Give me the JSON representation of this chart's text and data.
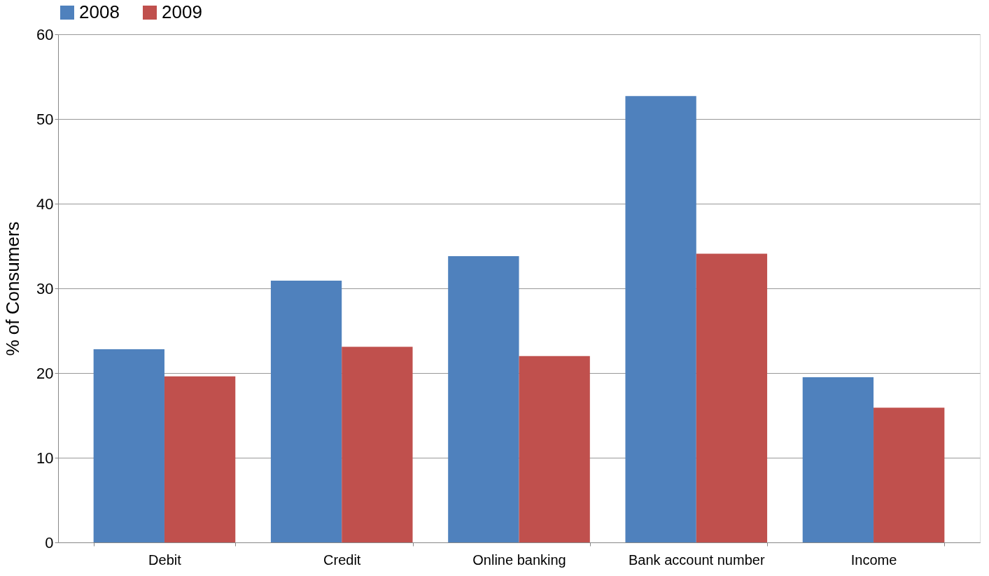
{
  "chart_data": {
    "type": "bar",
    "ylabel": "% of Consumers",
    "categories": [
      "Debit",
      "Credit",
      "Online banking",
      "Bank account number",
      "Income"
    ],
    "series": [
      {
        "name": "2008",
        "color": "#4f81bd",
        "values": [
          22.8,
          30.9,
          33.8,
          52.7,
          19.5
        ]
      },
      {
        "name": "2009",
        "color": "#c0504d",
        "values": [
          19.6,
          23.1,
          22.0,
          34.1,
          15.9
        ]
      }
    ],
    "ylim": [
      0,
      60
    ],
    "yticks": [
      0,
      10,
      20,
      30,
      40,
      50,
      60
    ],
    "grid": "y",
    "legend": "top"
  }
}
